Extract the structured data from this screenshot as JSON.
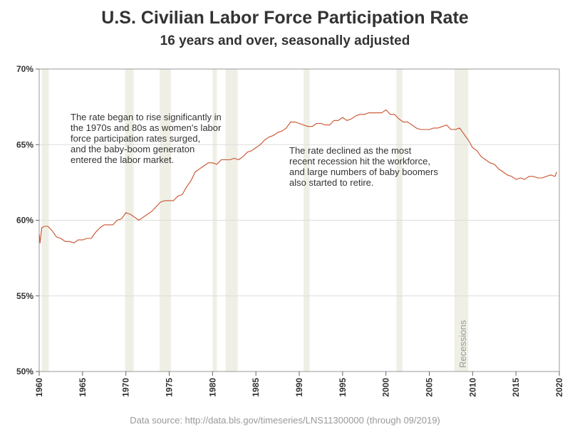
{
  "chart_data": {
    "type": "line",
    "title": "U.S. Civilian Labor Force Participation Rate",
    "subtitle": "16 years and over, seasonally adjusted",
    "xlabel": "",
    "ylabel": "",
    "xlim": [
      1960,
      2020
    ],
    "ylim": [
      50,
      70
    ],
    "x_ticks": [
      "1960",
      "1965",
      "1970",
      "1975",
      "1980",
      "1985",
      "1990",
      "1995",
      "2000",
      "2005",
      "2010",
      "2015",
      "2020"
    ],
    "y_ticks": [
      "70%",
      "65%",
      "60%",
      "55%",
      "50%"
    ],
    "grid": "horizontal",
    "recession_label": "Recessions",
    "recessions": [
      [
        1960.3,
        1961.1
      ],
      [
        1969.9,
        1970.9
      ],
      [
        1973.9,
        1975.2
      ],
      [
        1980.0,
        1980.5
      ],
      [
        1981.5,
        1982.9
      ],
      [
        1990.5,
        1991.2
      ],
      [
        2001.2,
        2001.9
      ],
      [
        2007.9,
        2009.5
      ]
    ],
    "annotations": [
      {
        "lines": [
          "The rate began to rise significantly in",
          "the 1970s and 80s as women's labor",
          "force participation rates surged,",
          "and the baby-boom generaton",
          "entered the labor market."
        ]
      },
      {
        "lines": [
          "The rate declined as the most",
          "recent recession hit the workforce,",
          "and large numbers of baby boomers",
          "also started to retire."
        ]
      }
    ],
    "source": "Data source: http://data.bls.gov/timeseries/LNS11300000 (through 09/2019)",
    "series": [
      {
        "color": "#c8502a",
        "x": [
          1960.0,
          1960.1,
          1960.3,
          1960.6,
          1961.0,
          1961.5,
          1962.0,
          1962.5,
          1963.0,
          1963.5,
          1964.0,
          1964.5,
          1965.0,
          1965.5,
          1966.0,
          1966.5,
          1967.0,
          1967.5,
          1968.0,
          1968.5,
          1969.0,
          1969.5,
          1970.0,
          1970.5,
          1971.0,
          1971.5,
          1972.0,
          1972.5,
          1973.0,
          1973.5,
          1974.0,
          1974.5,
          1975.0,
          1975.5,
          1976.0,
          1976.5,
          1977.0,
          1977.5,
          1978.0,
          1978.5,
          1979.0,
          1979.5,
          1980.0,
          1980.5,
          1981.0,
          1981.5,
          1982.0,
          1982.5,
          1983.0,
          1983.5,
          1984.0,
          1984.5,
          1985.0,
          1985.5,
          1986.0,
          1986.5,
          1987.0,
          1987.5,
          1988.0,
          1988.5,
          1989.0,
          1989.5,
          1990.0,
          1990.5,
          1991.0,
          1991.5,
          1992.0,
          1992.5,
          1993.0,
          1993.5,
          1994.0,
          1994.5,
          1995.0,
          1995.5,
          1996.0,
          1996.5,
          1997.0,
          1997.5,
          1998.0,
          1998.5,
          1999.0,
          1999.5,
          2000.0,
          2000.5,
          2001.0,
          2001.5,
          2002.0,
          2002.5,
          2003.0,
          2003.5,
          2004.0,
          2004.5,
          2005.0,
          2005.5,
          2006.0,
          2006.5,
          2007.0,
          2007.5,
          2008.0,
          2008.5,
          2009.0,
          2009.5,
          2010.0,
          2010.5,
          2011.0,
          2011.5,
          2012.0,
          2012.5,
          2013.0,
          2013.5,
          2014.0,
          2014.5,
          2015.0,
          2015.5,
          2016.0,
          2016.5,
          2017.0,
          2017.5,
          2018.0,
          2018.5,
          2019.0,
          2019.5,
          2019.7
        ],
        "values": [
          59.1,
          58.5,
          59.5,
          59.6,
          59.6,
          59.3,
          58.9,
          58.8,
          58.6,
          58.6,
          58.5,
          58.7,
          58.7,
          58.8,
          58.8,
          59.2,
          59.5,
          59.7,
          59.7,
          59.7,
          60.0,
          60.1,
          60.5,
          60.4,
          60.2,
          60.0,
          60.2,
          60.4,
          60.6,
          60.9,
          61.2,
          61.3,
          61.3,
          61.3,
          61.6,
          61.7,
          62.2,
          62.6,
          63.2,
          63.4,
          63.6,
          63.8,
          63.8,
          63.7,
          64.0,
          64.0,
          64.0,
          64.1,
          64.0,
          64.2,
          64.5,
          64.6,
          64.8,
          65.0,
          65.3,
          65.5,
          65.6,
          65.8,
          65.9,
          66.1,
          66.5,
          66.5,
          66.4,
          66.3,
          66.2,
          66.2,
          66.4,
          66.4,
          66.3,
          66.3,
          66.6,
          66.6,
          66.8,
          66.6,
          66.7,
          66.9,
          67.0,
          67.0,
          67.1,
          67.1,
          67.1,
          67.1,
          67.3,
          67.0,
          67.0,
          66.7,
          66.5,
          66.5,
          66.3,
          66.1,
          66.0,
          66.0,
          66.0,
          66.1,
          66.1,
          66.2,
          66.3,
          66.0,
          66.0,
          66.1,
          65.7,
          65.3,
          64.8,
          64.6,
          64.2,
          64.0,
          63.8,
          63.7,
          63.4,
          63.2,
          63.0,
          62.9,
          62.7,
          62.8,
          62.7,
          62.9,
          62.9,
          62.8,
          62.8,
          62.9,
          63.0,
          62.9,
          63.2
        ]
      }
    ]
  }
}
